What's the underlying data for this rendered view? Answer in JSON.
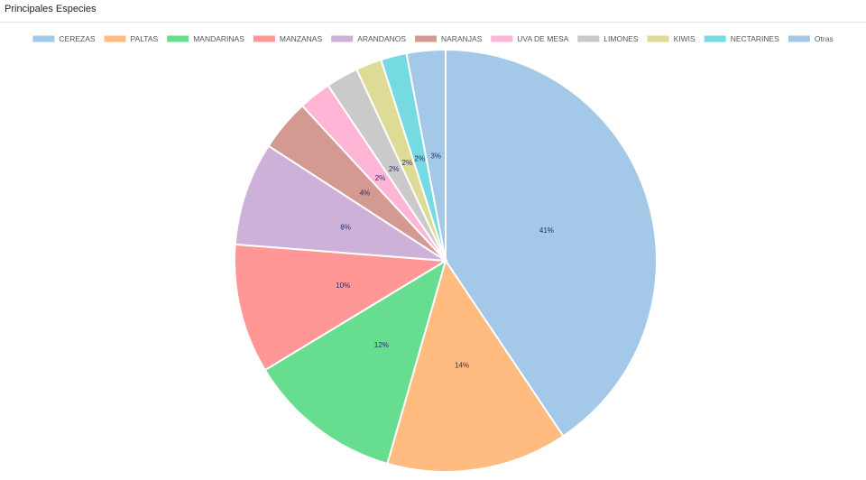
{
  "panel": {
    "title": "Principales Especies"
  },
  "chart_data": {
    "type": "pie",
    "title": "",
    "legend_position": "top",
    "start_angle_deg": 0,
    "direction": "clockwise",
    "slices": [
      {
        "label": "CEREZAS",
        "value": 41,
        "display": "41%",
        "color": "#a3c8e8"
      },
      {
        "label": "PALTAS",
        "value": 14,
        "display": "14%",
        "color": "#ffbb80"
      },
      {
        "label": "MANDARINAS",
        "value": 12,
        "display": "12%",
        "color": "#66dd8f"
      },
      {
        "label": "MANZANAS",
        "value": 10,
        "display": "10%",
        "color": "#ff9797"
      },
      {
        "label": "ARANDANOS",
        "value": 8,
        "display": "8%",
        "color": "#ceb1d9"
      },
      {
        "label": "NARANJAS",
        "value": 4,
        "display": "4%",
        "color": "#d49a92"
      },
      {
        "label": "UVA DE MESA",
        "value": 2.5,
        "display": "2%",
        "color": "#ffb6d6"
      },
      {
        "label": "LIMONES",
        "value": 2.5,
        "display": "2%",
        "color": "#cacaca"
      },
      {
        "label": "KIWIS",
        "value": 2,
        "display": "2%",
        "color": "#dddb96"
      },
      {
        "label": "NECTARINES",
        "value": 2,
        "display": "2%",
        "color": "#76dae3"
      },
      {
        "label": "Otras",
        "value": 3,
        "display": "3%",
        "color": "#a3c8e8"
      }
    ]
  }
}
